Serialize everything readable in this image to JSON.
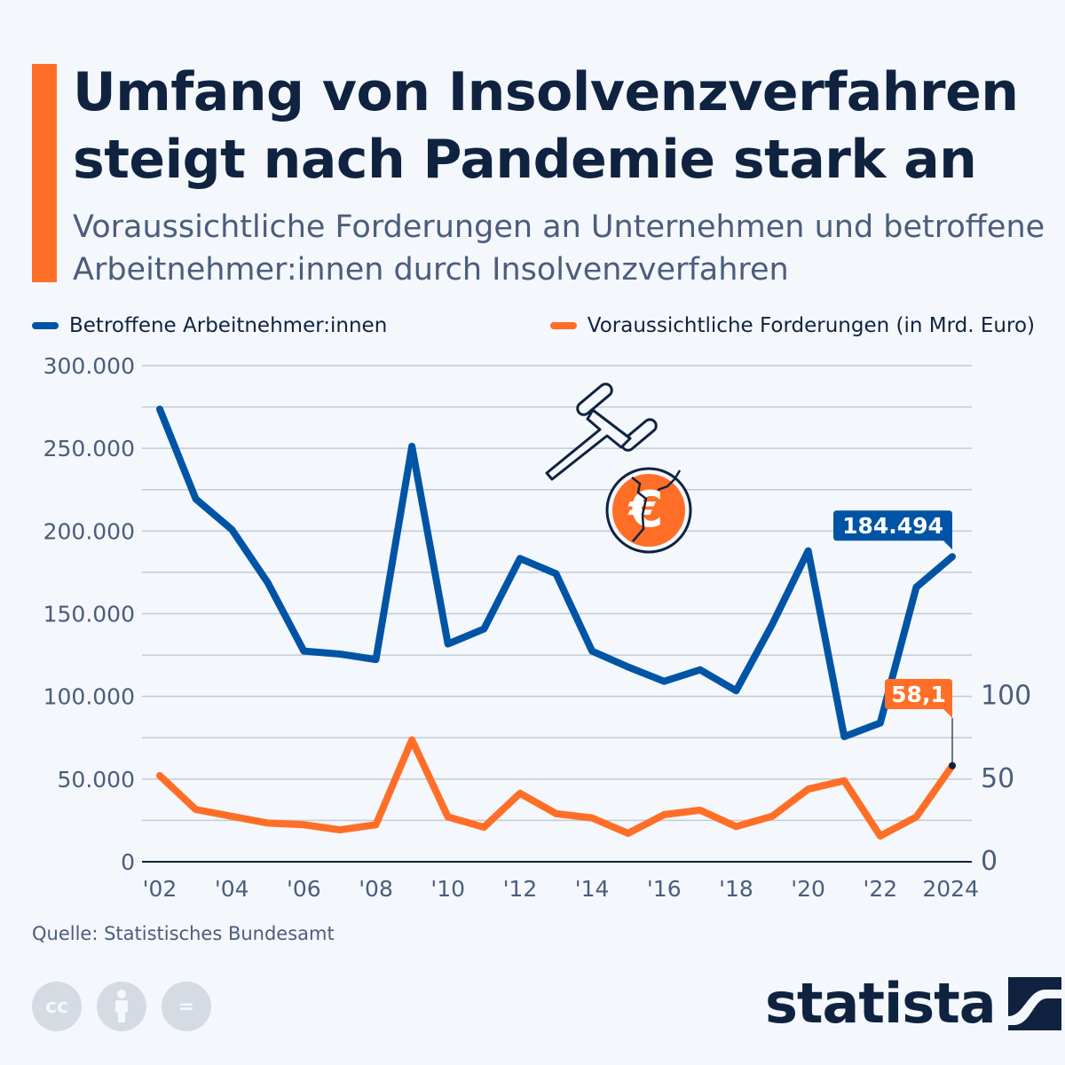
{
  "header": {
    "title": "Umfang von Insolvenzverfahren steigt nach Pandemie stark an",
    "subtitle": "Voraussichtliche Forderungen an Unternehmen und betroffene Arbeitnehmer:innen durch Insolvenzverfahren"
  },
  "colors": {
    "accent": "#ff6e27",
    "blue": "#0054a6",
    "orange": "#ff6e27",
    "text": "#0f2340",
    "background": "#f4f7fb"
  },
  "chart_data": {
    "type": "line",
    "x": [
      2002,
      2003,
      2004,
      2005,
      2006,
      2007,
      2008,
      2009,
      2010,
      2011,
      2012,
      2013,
      2014,
      2015,
      2016,
      2017,
      2018,
      2019,
      2020,
      2021,
      2022,
      2023,
      2024
    ],
    "x_tick_labels": [
      "'02",
      "'04",
      "'06",
      "'08",
      "'10",
      "'12",
      "'14",
      "'16",
      "'18",
      "'20",
      "'22",
      "2024"
    ],
    "x_tick_values": [
      2002,
      2004,
      2006,
      2008,
      2010,
      2012,
      2014,
      2016,
      2018,
      2020,
      2022,
      2024
    ],
    "left_axis": {
      "range": [
        0,
        300000
      ],
      "tick_labels": [
        "0",
        "50.000",
        "100.000",
        "150.000",
        "200.000",
        "250.000",
        "300.000"
      ],
      "tick_values": [
        0,
        50000,
        100000,
        150000,
        200000,
        250000,
        300000
      ]
    },
    "right_axis": {
      "range": [
        0,
        300
      ],
      "tick_labels": [
        "0",
        "50",
        "100"
      ],
      "tick_values": [
        0,
        50,
        100
      ]
    },
    "grid": true,
    "legend_placement": "top",
    "series": [
      {
        "name": "Betroffene Arbeitnehmer:innen",
        "axis": "left",
        "color": "#0054a6",
        "values": [
          273700,
          219400,
          200900,
          168700,
          127400,
          125600,
          122300,
          251200,
          131700,
          140800,
          183400,
          174200,
          127400,
          117800,
          109100,
          116100,
          103400,
          143500,
          188000,
          75700,
          83900,
          166000,
          184494
        ],
        "end_label": "184.494"
      },
      {
        "name": "Voraussichtliche Forderungen (in Mrd. Euro)",
        "axis": "right",
        "color": "#ff6e27",
        "values": [
          52.1,
          31.6,
          27.5,
          23.4,
          22.4,
          19.3,
          22.4,
          73.7,
          27.1,
          20.9,
          41.4,
          29.1,
          26.5,
          17.2,
          28.5,
          31.2,
          21.3,
          27.5,
          43.9,
          49.0,
          15.6,
          27.1,
          58.1
        ],
        "end_label": "58,1"
      }
    ]
  },
  "icons": [
    "gavel-icon",
    "broken-euro-coin-icon",
    "cc-icon",
    "attribution-icon",
    "no-derivatives-icon",
    "statista-logo-icon"
  ],
  "footer": {
    "source": "Quelle: Statistisches Bundesamt",
    "logo": "statista",
    "cc": "cc",
    "nd": "="
  }
}
